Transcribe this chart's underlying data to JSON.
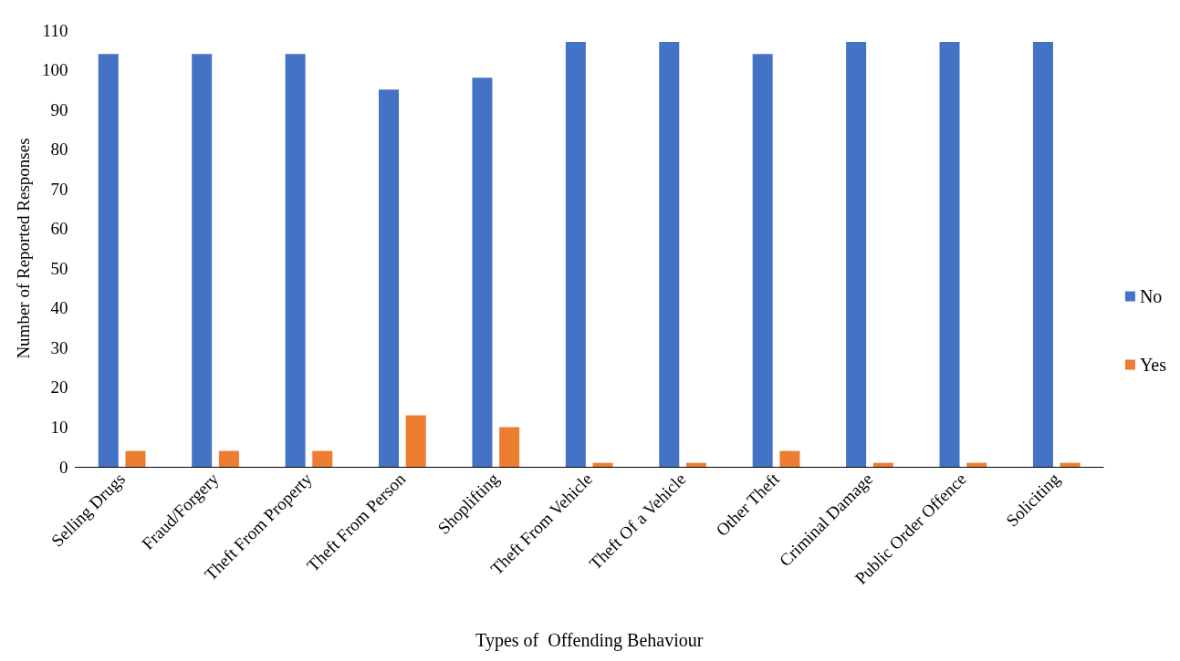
{
  "chart_data": {
    "type": "bar",
    "xlabel": "Types of  Offending Behaviour",
    "ylabel": "Number of Reported Responses",
    "categories": [
      "Selling Drugs",
      "Fraud/Forgery",
      "Theft From Property",
      "Theft From Person",
      "Shoplifting",
      "Theft From Vehicle",
      "Theft Of a Vehicle",
      "Other Theft",
      "Criminal Damage",
      "Public Order Offence",
      "Soliciting"
    ],
    "series": [
      {
        "name": "No",
        "color": "#4472c4",
        "values": [
          104,
          104,
          104,
          95,
          98,
          107,
          107,
          104,
          107,
          107,
          107
        ]
      },
      {
        "name": "Yes",
        "color": "#ed7d31",
        "values": [
          4,
          4,
          4,
          13,
          10,
          1,
          1,
          4,
          1,
          1,
          1
        ]
      }
    ],
    "ylim": [
      0,
      110
    ],
    "yticks": [
      0,
      10,
      20,
      30,
      40,
      50,
      60,
      70,
      80,
      90,
      100,
      110
    ],
    "grid": false,
    "legend": "right"
  }
}
